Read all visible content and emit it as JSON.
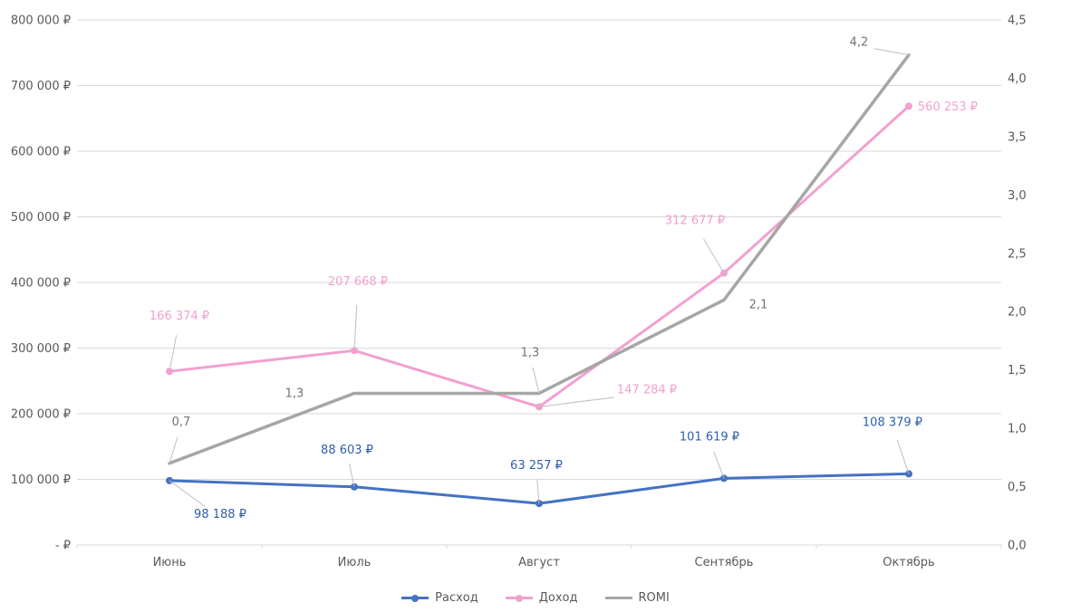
{
  "chart_data": {
    "type": "line",
    "title": "",
    "categories": [
      "Июнь",
      "Июль",
      "Август",
      "Сентябрь",
      "Октябрь"
    ],
    "series": [
      {
        "name": "Расход",
        "axis": "left",
        "color": "#4472C4",
        "label_color": "#2E5FA8",
        "markers": true,
        "values": [
          98188,
          88603,
          63257,
          101619,
          108379
        ],
        "labels": [
          "98 188 ₽",
          "88 603 ₽",
          "63 257 ₽",
          "101 619 ₽",
          "108 379 ₽"
        ]
      },
      {
        "name": "Доход",
        "axis": "left",
        "color": "#F2A0D0",
        "label_color": "#F2A0D0",
        "markers": true,
        "plotted": "stacked_on_previous",
        "values": [
          166374,
          207668,
          147284,
          312677,
          560253
        ],
        "labels": [
          "166 374 ₽",
          "207 668 ₽",
          "147 284 ₽",
          "312 677 ₽",
          "560 253 ₽"
        ]
      },
      {
        "name": "ROMI",
        "axis": "right",
        "color": "#A6A6A6",
        "label_color": "#737373",
        "markers": false,
        "values": [
          0.7,
          1.3,
          1.3,
          2.1,
          4.2
        ],
        "labels": [
          "0,7",
          "1,3",
          "1,3",
          "2,1",
          "4,2"
        ]
      }
    ],
    "left_axis": {
      "min": 0,
      "max": 800000,
      "tick_labels": [
        "800 000 ₽",
        "700 000 ₽",
        "600 000 ₽",
        "500 000 ₽",
        "400 000 ₽",
        "300 000 ₽",
        "200 000 ₽",
        "100 000 ₽",
        "-  ₽"
      ]
    },
    "right_axis": {
      "min": 0,
      "max": 4.5,
      "tick_labels": [
        "4,5",
        "4,0",
        "3,5",
        "3,0",
        "2,5",
        "2,0",
        "1,5",
        "1,0",
        "0,5",
        "0,0"
      ]
    },
    "legend": {
      "position": "bottom",
      "entries": [
        "Расход",
        "Доход",
        "ROMI"
      ]
    },
    "grid": true,
    "colors": {
      "gridline": "#D9D9D9",
      "axis_text": "#595959",
      "leader": "#BFBFBF",
      "background": "#FFFFFF"
    }
  }
}
